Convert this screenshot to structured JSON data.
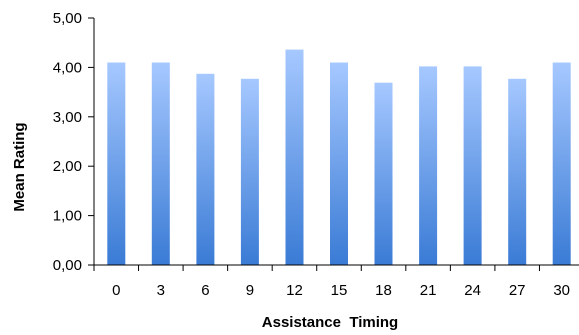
{
  "chart_data": {
    "type": "bar",
    "title": "",
    "xlabel": "Assistance  Timing",
    "ylabel": "Mean Rating",
    "categories": [
      "0",
      "3",
      "6",
      "9",
      "12",
      "15",
      "18",
      "21",
      "24",
      "27",
      "30"
    ],
    "values": [
      4.1,
      4.1,
      3.87,
      3.77,
      4.36,
      4.1,
      3.69,
      4.02,
      4.02,
      3.77,
      4.1
    ],
    "ylim": [
      0,
      5
    ],
    "yticks": [
      0,
      1,
      2,
      3,
      4,
      5
    ],
    "ytick_labels": [
      "0,00",
      "1,00",
      "2,00",
      "3,00",
      "4,00",
      "5,00"
    ],
    "grid": false,
    "legend": "none",
    "colors": {
      "bar_top": "#a6c8ff",
      "bar_bottom": "#3a7bd5",
      "axis": "#000000"
    }
  }
}
